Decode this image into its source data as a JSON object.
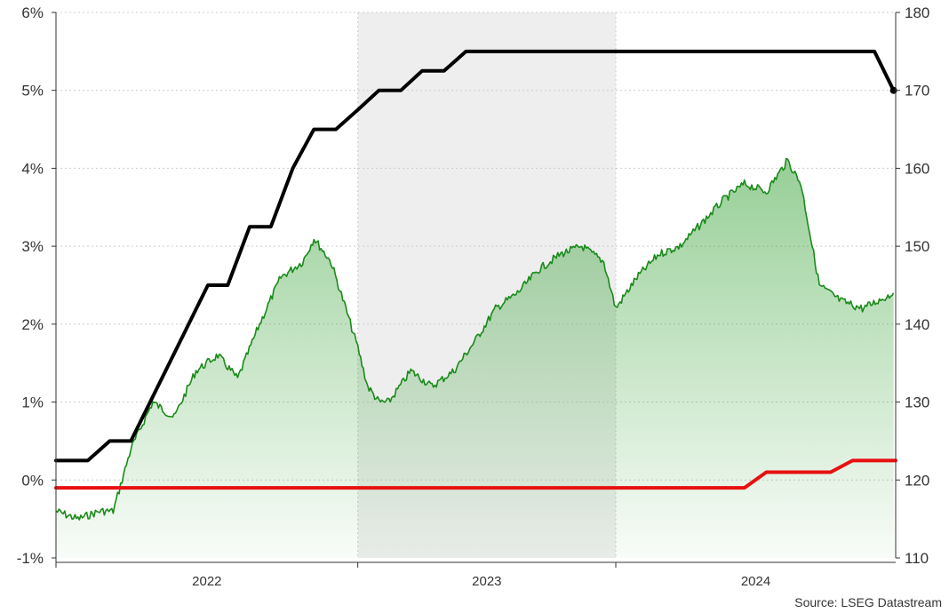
{
  "chart_data": {
    "type": "line",
    "source": "Source: LSEG Datastream",
    "x_tick_labels": [
      "2022",
      "2023",
      "2024"
    ],
    "x_range": [
      "2021-07-01",
      "2024-10-01"
    ],
    "shaded_period": [
      "2022-09-01",
      "2023-09-01"
    ],
    "left_axis": {
      "ylim": [
        -1,
        6
      ],
      "ticks": [
        -1,
        0,
        1,
        2,
        3,
        4,
        5,
        6
      ],
      "tick_labels": [
        "-1%",
        "0%",
        "1%",
        "2%",
        "3%",
        "4%",
        "5%",
        "6%"
      ]
    },
    "right_axis": {
      "ylim": [
        110,
        180
      ],
      "ticks": [
        110,
        120,
        130,
        140,
        150,
        160,
        170,
        180
      ],
      "tick_labels": [
        "110",
        "120",
        "130",
        "140",
        "150",
        "160",
        "170",
        "180"
      ]
    },
    "grid": true,
    "colors": {
      "black_line": "#000000",
      "red_line": "#e81010",
      "green_line": "#1a8a1a",
      "green_fill": "#2e9e2e",
      "shade": "#eeeeee",
      "grid": "#cccccc"
    },
    "series": [
      {
        "axis": "left",
        "color": "#000000",
        "shape": "step-ramp",
        "points": [
          [
            "2021-07-01",
            0.25
          ],
          [
            "2021-08-15",
            0.25
          ],
          [
            "2021-09-15",
            0.5
          ],
          [
            "2021-10-15",
            0.5
          ],
          [
            "2022-02-01",
            2.5
          ],
          [
            "2022-03-01",
            2.5
          ],
          [
            "2022-04-01",
            3.25
          ],
          [
            "2022-05-01",
            3.25
          ],
          [
            "2022-06-01",
            4.0
          ],
          [
            "2022-07-01",
            4.5
          ],
          [
            "2022-08-01",
            4.5
          ],
          [
            "2022-09-01",
            4.75
          ],
          [
            "2022-10-01",
            5.0
          ],
          [
            "2022-11-01",
            5.0
          ],
          [
            "2022-12-01",
            5.25
          ],
          [
            "2023-01-01",
            5.25
          ],
          [
            "2023-02-01",
            5.5
          ],
          [
            "2024-09-01",
            5.5
          ],
          [
            "2024-09-28",
            5.0
          ]
        ]
      },
      {
        "axis": "left",
        "color": "#e81010",
        "shape": "step-ramp",
        "points": [
          [
            "2021-07-01",
            -0.1
          ],
          [
            "2024-03-01",
            -0.1
          ],
          [
            "2024-04-01",
            0.1
          ],
          [
            "2024-07-01",
            0.1
          ],
          [
            "2024-08-01",
            0.25
          ],
          [
            "2024-10-01",
            0.25
          ]
        ]
      },
      {
        "axis": "right",
        "color": "#1a8a1a",
        "shape": "noisy-area",
        "points": [
          [
            "2021-07-01",
            116
          ],
          [
            "2021-08-01",
            115
          ],
          [
            "2021-09-01",
            116
          ],
          [
            "2021-09-20",
            116
          ],
          [
            "2021-10-15",
            124
          ],
          [
            "2021-11-15",
            130
          ],
          [
            "2021-12-15",
            128
          ],
          [
            "2022-01-15",
            134
          ],
          [
            "2022-02-15",
            136
          ],
          [
            "2022-03-15",
            133
          ],
          [
            "2022-04-15",
            140
          ],
          [
            "2022-05-15",
            146
          ],
          [
            "2022-06-15",
            148
          ],
          [
            "2022-07-01",
            151
          ],
          [
            "2022-07-25",
            148
          ],
          [
            "2022-08-15",
            142
          ],
          [
            "2022-09-01",
            137
          ],
          [
            "2022-09-15",
            132
          ],
          [
            "2022-10-01",
            130
          ],
          [
            "2022-10-15",
            130
          ],
          [
            "2022-11-15",
            134
          ],
          [
            "2022-12-15",
            132
          ],
          [
            "2023-01-15",
            134
          ],
          [
            "2023-02-15",
            138
          ],
          [
            "2023-03-15",
            142
          ],
          [
            "2023-04-15",
            144
          ],
          [
            "2023-05-15",
            147
          ],
          [
            "2023-06-15",
            149
          ],
          [
            "2023-07-15",
            150
          ],
          [
            "2023-08-15",
            148
          ],
          [
            "2023-09-01",
            142
          ],
          [
            "2023-10-01",
            146
          ],
          [
            "2023-11-01",
            149
          ],
          [
            "2023-12-01",
            150
          ],
          [
            "2024-01-01",
            153
          ],
          [
            "2024-02-01",
            156
          ],
          [
            "2024-03-01",
            158
          ],
          [
            "2024-04-01",
            157
          ],
          [
            "2024-05-01",
            161
          ],
          [
            "2024-05-20",
            158
          ],
          [
            "2024-06-15",
            145
          ],
          [
            "2024-07-15",
            143
          ],
          [
            "2024-08-15",
            142
          ],
          [
            "2024-09-28",
            144
          ]
        ]
      }
    ]
  }
}
